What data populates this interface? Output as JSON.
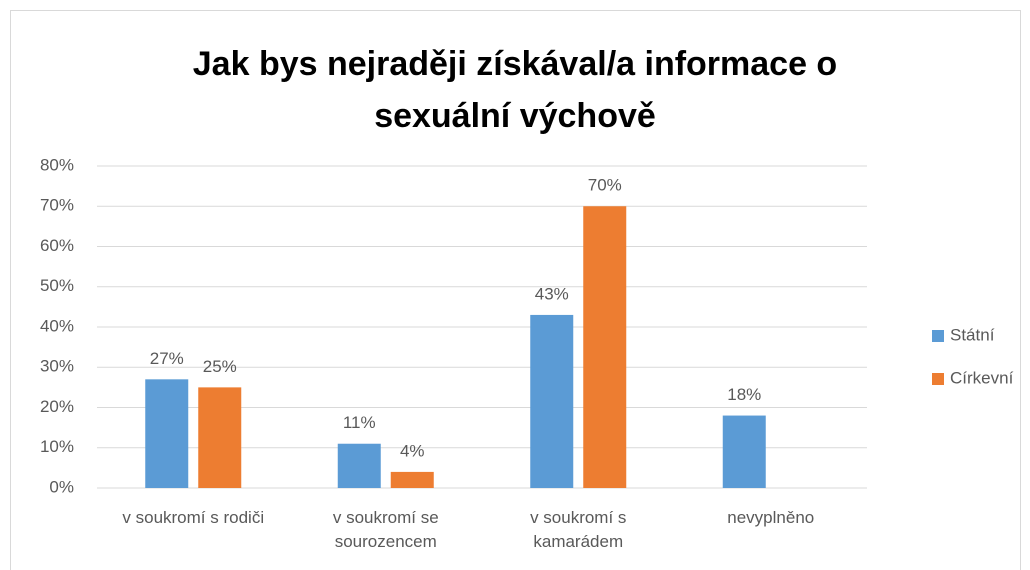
{
  "chart_data": {
    "type": "bar",
    "title": "Jak bys nejraději získával/a informace o sexuální výchově",
    "categories": [
      "v soukromí s rodiči",
      "v soukromí se sourozencem",
      "v soukromí s kamarádem",
      "nevyplněno"
    ],
    "series": [
      {
        "name": "Státní",
        "color": "#5b9bd5",
        "values": [
          27,
          11,
          43,
          18
        ],
        "value_labels": [
          "27%",
          "11%",
          "43%",
          "18%"
        ]
      },
      {
        "name": "Církevní",
        "color": "#ed7d31",
        "values": [
          25,
          4,
          70,
          null
        ],
        "value_labels": [
          "25%",
          "4%",
          "70%",
          null
        ]
      }
    ],
    "ylim": [
      0,
      80
    ],
    "yticks": [
      {
        "value": 0,
        "label": "0%"
      },
      {
        "value": 10,
        "label": "10%"
      },
      {
        "value": 20,
        "label": "20%"
      },
      {
        "value": 30,
        "label": "30%"
      },
      {
        "value": 40,
        "label": "40%"
      },
      {
        "value": 50,
        "label": "50%"
      },
      {
        "value": 60,
        "label": "60%"
      },
      {
        "value": 70,
        "label": "70%"
      },
      {
        "value": 80,
        "label": "80%"
      }
    ],
    "grid": true,
    "legend": "right"
  }
}
